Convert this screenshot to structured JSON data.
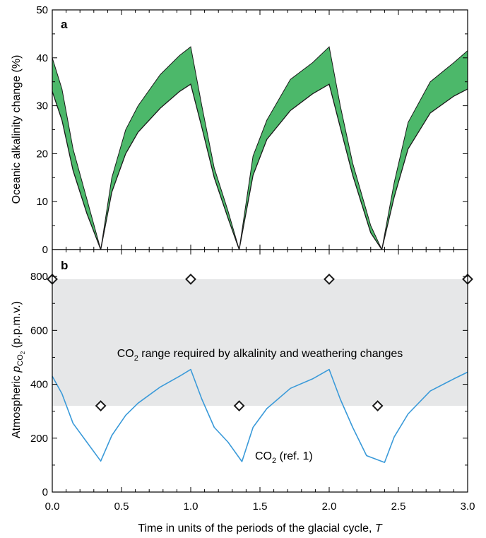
{
  "colors": {
    "band_fill": "#4cb86a",
    "band_stroke": "#1a1a1a",
    "co2_line": "#3a9ad9",
    "range_fill": "#e6e7e8",
    "marker_stroke": "#1a1a1a"
  },
  "chart_data": [
    {
      "type": "area",
      "panel_label": "a",
      "ylabel": "Oceanic alkalinity change (%)",
      "xlim": [
        0,
        3
      ],
      "ylim": [
        0,
        50
      ],
      "yticks": [
        0,
        10,
        20,
        30,
        40,
        50
      ],
      "ytick_labels": [
        "0",
        "10",
        "20",
        "30",
        "40",
        "50"
      ],
      "series": [
        {
          "upper": [
            [
              0.0,
              40.0
            ],
            [
              0.07,
              33.5
            ],
            [
              0.15,
              21.0
            ],
            [
              0.25,
              10.5
            ],
            [
              0.35,
              0.0
            ],
            [
              0.43,
              15.0
            ],
            [
              0.53,
              25.0
            ],
            [
              0.62,
              30.0
            ],
            [
              0.78,
              36.5
            ],
            [
              0.92,
              40.5
            ],
            [
              1.0,
              42.3
            ],
            [
              1.08,
              30.0
            ],
            [
              1.17,
              17.0
            ],
            [
              1.27,
              8.0
            ],
            [
              1.35,
              0.0
            ],
            [
              1.45,
              19.5
            ],
            [
              1.55,
              27.0
            ],
            [
              1.72,
              35.5
            ],
            [
              1.88,
              39.0
            ],
            [
              2.0,
              42.3
            ],
            [
              2.08,
              30.0
            ],
            [
              2.17,
              18.0
            ],
            [
              2.3,
              5.0
            ],
            [
              2.38,
              0.0
            ],
            [
              2.47,
              14.0
            ],
            [
              2.57,
              26.5
            ],
            [
              2.73,
              35.0
            ],
            [
              2.9,
              39.0
            ],
            [
              3.0,
              41.5
            ]
          ],
          "lower": [
            [
              0.0,
              33.0
            ],
            [
              0.07,
              27.0
            ],
            [
              0.15,
              16.5
            ],
            [
              0.25,
              7.5
            ],
            [
              0.35,
              0.0
            ],
            [
              0.43,
              12.0
            ],
            [
              0.53,
              20.0
            ],
            [
              0.62,
              24.5
            ],
            [
              0.78,
              29.5
            ],
            [
              0.92,
              33.0
            ],
            [
              1.0,
              34.5
            ],
            [
              1.08,
              25.5
            ],
            [
              1.17,
              15.0
            ],
            [
              1.27,
              6.5
            ],
            [
              1.35,
              0.0
            ],
            [
              1.45,
              15.5
            ],
            [
              1.55,
              23.0
            ],
            [
              1.72,
              29.0
            ],
            [
              1.88,
              32.5
            ],
            [
              2.0,
              34.5
            ],
            [
              2.08,
              25.5
            ],
            [
              2.17,
              15.5
            ],
            [
              2.3,
              3.5
            ],
            [
              2.38,
              0.0
            ],
            [
              2.47,
              11.0
            ],
            [
              2.57,
              21.0
            ],
            [
              2.73,
              28.5
            ],
            [
              2.9,
              32.0
            ],
            [
              3.0,
              33.5
            ]
          ]
        }
      ]
    },
    {
      "type": "line",
      "panel_label": "b",
      "ylabel_main": "Atmospheric ",
      "ylabel_symbol": "p",
      "ylabel_sub": "CO",
      "ylabel_subsub": "2",
      "ylabel_units": " (p.p.m.v.)",
      "xlabel_main": "Time in units of the periods of the glacial cycle, ",
      "xlabel_symbol": "T",
      "xlim": [
        0,
        3
      ],
      "ylim": [
        0,
        900
      ],
      "yticks": [
        0,
        200,
        400,
        600,
        800
      ],
      "ytick_labels": [
        "0",
        "200",
        "400",
        "600",
        "800"
      ],
      "xticks": [
        0,
        0.5,
        1,
        1.5,
        2,
        2.5,
        3
      ],
      "xtick_labels": [
        "0.0",
        "0.5",
        "1.0",
        "1.5",
        "2.0",
        "2.5",
        "3.0"
      ],
      "range": {
        "y_low": 320,
        "y_high": 790,
        "label_pre": "CO",
        "label_sub": "2",
        "label_post": " range required by alkalinity and weathering changes"
      },
      "series": [
        {
          "label_pre": "CO",
          "label_sub": "2",
          "label_post": " (ref. 1)",
          "x": [
            0.0,
            0.07,
            0.15,
            0.25,
            0.35,
            0.43,
            0.53,
            0.62,
            0.78,
            0.92,
            1.0,
            1.08,
            1.17,
            1.27,
            1.37,
            1.45,
            1.55,
            1.72,
            1.88,
            2.0,
            2.08,
            2.17,
            2.27,
            2.4,
            2.47,
            2.57,
            2.73,
            2.9,
            3.0
          ],
          "y": [
            430,
            365,
            255,
            185,
            115,
            210,
            285,
            330,
            390,
            430,
            455,
            345,
            240,
            185,
            113,
            240,
            310,
            385,
            420,
            455,
            345,
            240,
            135,
            110,
            205,
            290,
            375,
            420,
            445
          ]
        }
      ],
      "markers": {
        "x": [
          0.0,
          0.35,
          1.0,
          1.35,
          2.0,
          2.35,
          3.0
        ],
        "y": [
          790,
          320,
          790,
          320,
          790,
          320,
          790
        ]
      }
    }
  ]
}
